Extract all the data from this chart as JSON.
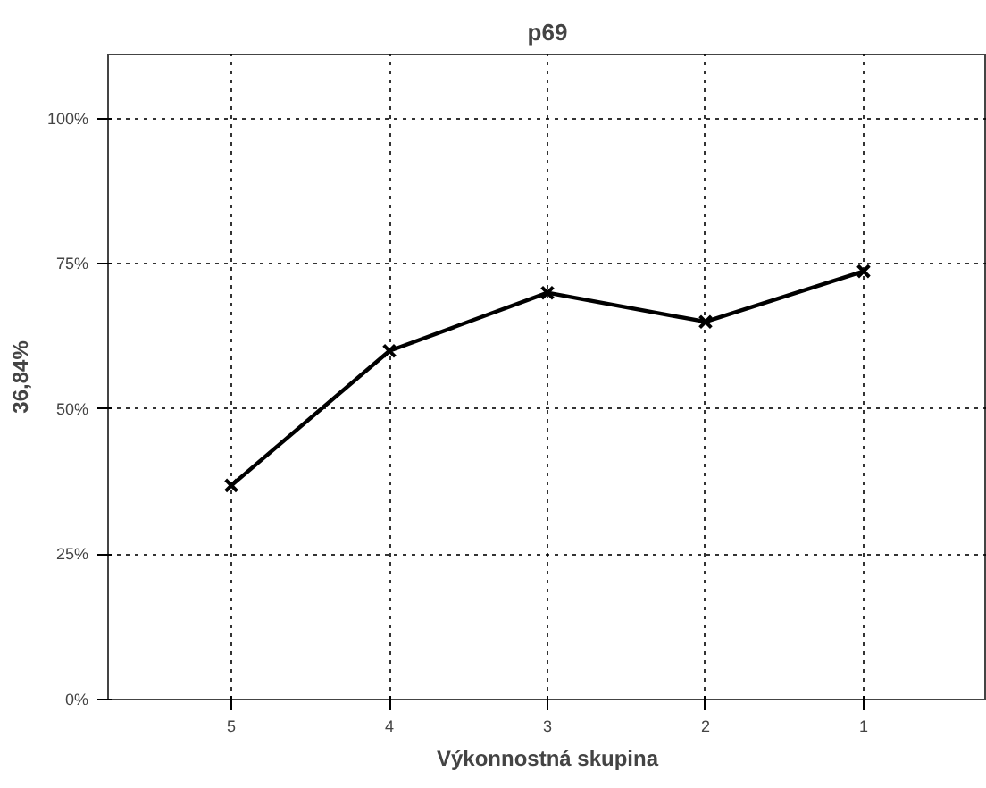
{
  "chart_data": {
    "type": "line",
    "title": "p69",
    "xlabel": "Výkonnostná skupina",
    "ylabel": "36,84%",
    "categories": [
      "5",
      "4",
      "3",
      "2",
      "1"
    ],
    "series": [
      {
        "color": "#000000",
        "values": [
          36.84,
          60.0,
          70.0,
          65.0,
          73.7
        ]
      }
    ],
    "ylim": [
      0,
      111
    ],
    "yticks": [
      {
        "value": 0,
        "label": "0%"
      },
      {
        "value": 25,
        "label": "25%"
      },
      {
        "value": 50,
        "label": "50%"
      },
      {
        "value": 75,
        "label": "75%"
      },
      {
        "value": 100,
        "label": "100%"
      }
    ],
    "grid": true,
    "marker": "cross",
    "line_style": "solid"
  }
}
